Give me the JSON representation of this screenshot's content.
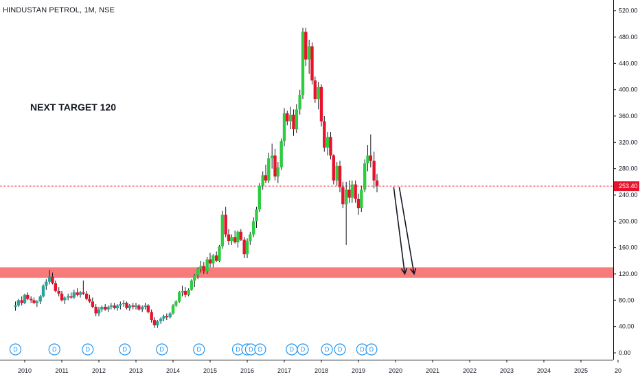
{
  "header": {
    "symbol": "HINDUSTAN PETROL, 1M, NSE"
  },
  "annotation": {
    "text": "NEXT TARGET 120"
  },
  "colors": {
    "up": "#26a69a",
    "up_bright": "#2ecc40",
    "down": "#e8132b",
    "zone": "#f77b7b",
    "price_line": "#e8132b",
    "dividend": "#2196f3"
  },
  "chart_data": {
    "type": "candlestick",
    "x_ticks": [
      "2010",
      "2011",
      "2012",
      "2013",
      "2014",
      "2015",
      "2016",
      "2017",
      "2018",
      "2019",
      "2020",
      "2021",
      "2022",
      "2023",
      "2024",
      "2025",
      "20"
    ],
    "y_ticks": [
      "520.00",
      "480.00",
      "440.00",
      "400.00",
      "360.00",
      "320.00",
      "280.00",
      "240.00",
      "200.00",
      "160.00",
      "120.00",
      "80.00",
      "40.00",
      "0.00"
    ],
    "ylim": [
      -5,
      545
    ],
    "last_price": 253.4,
    "last_price_label": "253.40",
    "support_zone": [
      114,
      130
    ],
    "dividend_marker_label": "D",
    "dividend_marks": [
      2009.75,
      2010.8,
      2011.7,
      2012.7,
      2013.7,
      2014.7,
      2015.75,
      2016.0,
      2016.1,
      2016.35,
      2017.2,
      2017.5,
      2018.15,
      2018.5,
      2019.1,
      2019.35
    ],
    "projection_arrows": [
      {
        "from": [
          2019.95,
          252
        ],
        "to": [
          2020.25,
          120
        ]
      },
      {
        "from": [
          2020.1,
          252
        ],
        "to": [
          2020.5,
          120
        ]
      }
    ],
    "ohlc": [
      [
        2009.75,
        70,
        78,
        64,
        72
      ],
      [
        2009.83,
        72,
        82,
        70,
        80
      ],
      [
        2009.92,
        80,
        86,
        72,
        76
      ],
      [
        2010.0,
        76,
        90,
        74,
        88
      ],
      [
        2010.08,
        88,
        92,
        80,
        82
      ],
      [
        2010.17,
        82,
        86,
        76,
        80
      ],
      [
        2010.25,
        80,
        84,
        74,
        76
      ],
      [
        2010.33,
        76,
        80,
        70,
        78
      ],
      [
        2010.42,
        78,
        88,
        74,
        86
      ],
      [
        2010.5,
        86,
        104,
        84,
        102
      ],
      [
        2010.58,
        102,
        112,
        96,
        108
      ],
      [
        2010.67,
        108,
        126,
        104,
        116
      ],
      [
        2010.75,
        116,
        122,
        104,
        106
      ],
      [
        2010.83,
        106,
        110,
        92,
        94
      ],
      [
        2010.92,
        94,
        100,
        86,
        90
      ],
      [
        2011.0,
        90,
        94,
        78,
        80
      ],
      [
        2011.08,
        80,
        86,
        74,
        84
      ],
      [
        2011.17,
        84,
        90,
        80,
        86
      ],
      [
        2011.25,
        86,
        92,
        82,
        84
      ],
      [
        2011.33,
        84,
        96,
        82,
        92
      ],
      [
        2011.42,
        92,
        98,
        86,
        88
      ],
      [
        2011.5,
        88,
        94,
        84,
        92
      ],
      [
        2011.58,
        92,
        110,
        88,
        90
      ],
      [
        2011.67,
        90,
        94,
        80,
        82
      ],
      [
        2011.75,
        82,
        88,
        76,
        78
      ],
      [
        2011.83,
        78,
        84,
        68,
        70
      ],
      [
        2011.92,
        70,
        74,
        56,
        60
      ],
      [
        2012.0,
        60,
        70,
        56,
        66
      ],
      [
        2012.08,
        66,
        72,
        62,
        70
      ],
      [
        2012.17,
        70,
        74,
        64,
        66
      ],
      [
        2012.25,
        66,
        72,
        62,
        70
      ],
      [
        2012.33,
        70,
        76,
        66,
        72
      ],
      [
        2012.42,
        72,
        76,
        66,
        68
      ],
      [
        2012.5,
        68,
        74,
        64,
        72
      ],
      [
        2012.58,
        72,
        78,
        66,
        74
      ],
      [
        2012.67,
        74,
        80,
        70,
        76
      ],
      [
        2012.75,
        76,
        78,
        66,
        68
      ],
      [
        2012.83,
        68,
        74,
        64,
        72
      ],
      [
        2012.92,
        72,
        76,
        66,
        70
      ],
      [
        2013.0,
        70,
        76,
        66,
        72
      ],
      [
        2013.08,
        72,
        74,
        64,
        66
      ],
      [
        2013.17,
        66,
        72,
        62,
        70
      ],
      [
        2013.25,
        70,
        76,
        66,
        72
      ],
      [
        2013.33,
        72,
        74,
        60,
        62
      ],
      [
        2013.42,
        62,
        66,
        46,
        50
      ],
      [
        2013.5,
        50,
        54,
        38,
        42
      ],
      [
        2013.58,
        42,
        50,
        38,
        48
      ],
      [
        2013.67,
        48,
        54,
        44,
        52
      ],
      [
        2013.75,
        52,
        58,
        48,
        56
      ],
      [
        2013.83,
        56,
        60,
        50,
        54
      ],
      [
        2013.92,
        54,
        62,
        52,
        60
      ],
      [
        2014.0,
        60,
        74,
        58,
        72
      ],
      [
        2014.08,
        72,
        80,
        70,
        78
      ],
      [
        2014.17,
        78,
        94,
        76,
        92
      ],
      [
        2014.25,
        92,
        102,
        86,
        94
      ],
      [
        2014.33,
        94,
        100,
        84,
        88
      ],
      [
        2014.42,
        88,
        98,
        86,
        96
      ],
      [
        2014.5,
        96,
        112,
        94,
        110
      ],
      [
        2014.58,
        110,
        120,
        100,
        118
      ],
      [
        2014.67,
        118,
        130,
        112,
        128
      ],
      [
        2014.75,
        128,
        140,
        122,
        132
      ],
      [
        2014.83,
        132,
        138,
        120,
        124
      ],
      [
        2014.92,
        124,
        146,
        120,
        142
      ],
      [
        2015.0,
        142,
        152,
        130,
        136
      ],
      [
        2015.08,
        136,
        150,
        130,
        148
      ],
      [
        2015.17,
        148,
        154,
        138,
        140
      ],
      [
        2015.25,
        140,
        164,
        138,
        162
      ],
      [
        2015.33,
        162,
        216,
        158,
        210
      ],
      [
        2015.42,
        210,
        222,
        176,
        180
      ],
      [
        2015.5,
        180,
        188,
        164,
        170
      ],
      [
        2015.58,
        170,
        180,
        164,
        176
      ],
      [
        2015.67,
        176,
        186,
        166,
        168
      ],
      [
        2015.75,
        168,
        186,
        160,
        184
      ],
      [
        2015.83,
        184,
        188,
        170,
        172
      ],
      [
        2015.92,
        172,
        176,
        144,
        150
      ],
      [
        2016.0,
        150,
        174,
        144,
        170
      ],
      [
        2016.08,
        170,
        184,
        164,
        180
      ],
      [
        2016.17,
        180,
        206,
        176,
        200
      ],
      [
        2016.25,
        200,
        222,
        190,
        218
      ],
      [
        2016.33,
        218,
        258,
        214,
        254
      ],
      [
        2016.42,
        254,
        276,
        248,
        270
      ],
      [
        2016.5,
        270,
        286,
        258,
        262
      ],
      [
        2016.58,
        262,
        304,
        258,
        296
      ],
      [
        2016.67,
        296,
        318,
        280,
        300
      ],
      [
        2016.75,
        300,
        310,
        262,
        268
      ],
      [
        2016.83,
        268,
        290,
        258,
        282
      ],
      [
        2016.92,
        282,
        326,
        278,
        322
      ],
      [
        2017.0,
        322,
        372,
        314,
        364
      ],
      [
        2017.08,
        364,
        368,
        346,
        352
      ],
      [
        2017.17,
        352,
        374,
        340,
        362
      ],
      [
        2017.25,
        362,
        370,
        330,
        340
      ],
      [
        2017.33,
        340,
        378,
        334,
        370
      ],
      [
        2017.42,
        370,
        400,
        362,
        392
      ],
      [
        2017.5,
        392,
        494,
        386,
        488
      ],
      [
        2017.58,
        488,
        494,
        436,
        446
      ],
      [
        2017.67,
        446,
        476,
        424,
        466
      ],
      [
        2017.75,
        466,
        472,
        408,
        414
      ],
      [
        2017.83,
        414,
        420,
        380,
        386
      ],
      [
        2017.92,
        386,
        412,
        370,
        404
      ],
      [
        2018.0,
        404,
        408,
        344,
        352
      ],
      [
        2018.08,
        352,
        360,
        306,
        312
      ],
      [
        2018.17,
        312,
        336,
        300,
        328
      ],
      [
        2018.25,
        328,
        336,
        294,
        300
      ],
      [
        2018.33,
        300,
        302,
        256,
        262
      ],
      [
        2018.42,
        262,
        290,
        254,
        284
      ],
      [
        2018.5,
        284,
        292,
        244,
        252
      ],
      [
        2018.58,
        252,
        260,
        220,
        226
      ],
      [
        2018.67,
        226,
        260,
        164,
        248
      ],
      [
        2018.75,
        248,
        262,
        228,
        236
      ],
      [
        2018.83,
        236,
        262,
        228,
        256
      ],
      [
        2018.92,
        256,
        262,
        228,
        234
      ],
      [
        2019.0,
        234,
        242,
        210,
        220
      ],
      [
        2019.08,
        220,
        254,
        214,
        248
      ],
      [
        2019.17,
        248,
        294,
        244,
        288
      ],
      [
        2019.25,
        288,
        316,
        276,
        300
      ],
      [
        2019.33,
        300,
        332,
        282,
        292
      ],
      [
        2019.42,
        292,
        306,
        250,
        262
      ],
      [
        2019.5,
        262,
        272,
        244,
        254
      ]
    ]
  }
}
